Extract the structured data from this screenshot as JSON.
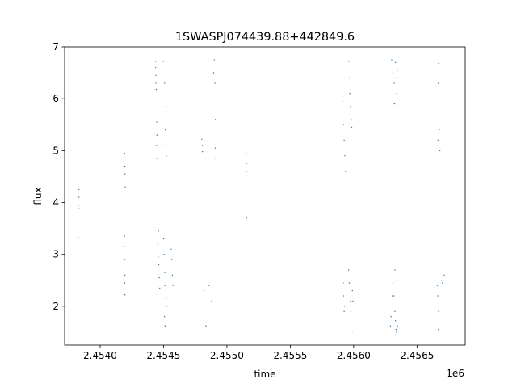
{
  "chart_data": {
    "type": "scatter",
    "title": "1SWASPJ074439.88+442849.6",
    "xlabel": "time",
    "ylabel": "flux",
    "x_offset_label": "1e6",
    "xlim": [
      2453720,
      2456880
    ],
    "ylim": [
      1.25,
      7.0
    ],
    "x_ticks": [
      2.454,
      2.4545,
      2.455,
      2.4555,
      2.456,
      2.4565
    ],
    "x_tick_labels": [
      "2.4540",
      "2.4545",
      "2.4550",
      "2.4555",
      "2.4560",
      "2.4565"
    ],
    "y_ticks": [
      2,
      3,
      4,
      5,
      6,
      7
    ],
    "y_tick_labels": [
      "2",
      "3",
      "4",
      "5",
      "6",
      "7"
    ],
    "grid": false,
    "marker_color": "#1f77b4",
    "series": [
      {
        "points": [
          [
            2453833,
            4.25
          ],
          [
            2453833,
            4.1
          ],
          [
            2453833,
            3.95
          ],
          [
            2453833,
            3.88
          ],
          [
            2453830,
            3.32
          ],
          [
            2454193,
            4.95
          ],
          [
            2454195,
            4.7
          ],
          [
            2454196,
            4.55
          ],
          [
            2454198,
            4.3
          ],
          [
            2454193,
            3.35
          ],
          [
            2454192,
            3.15
          ],
          [
            2454194,
            2.9
          ],
          [
            2454196,
            2.6
          ],
          [
            2454195,
            2.45
          ],
          [
            2454196,
            2.22
          ],
          [
            2454437,
            6.72
          ],
          [
            2454438,
            6.6
          ],
          [
            2454440,
            6.45
          ],
          [
            2454441,
            6.3
          ],
          [
            2454443,
            6.18
          ],
          [
            2454446,
            5.55
          ],
          [
            2454448,
            5.3
          ],
          [
            2454445,
            5.1
          ],
          [
            2454447,
            4.85
          ],
          [
            2454500,
            6.72
          ],
          [
            2454508,
            6.3
          ],
          [
            2454520,
            5.85
          ],
          [
            2454515,
            5.4
          ],
          [
            2454518,
            5.1
          ],
          [
            2454522,
            4.9
          ],
          [
            2454460,
            3.45
          ],
          [
            2454455,
            3.2
          ],
          [
            2454458,
            2.95
          ],
          [
            2454462,
            2.8
          ],
          [
            2454465,
            2.55
          ],
          [
            2454470,
            2.35
          ],
          [
            2454500,
            3.3
          ],
          [
            2454505,
            3.0
          ],
          [
            2454510,
            2.65
          ],
          [
            2454512,
            2.4
          ],
          [
            2454520,
            2.15
          ],
          [
            2454525,
            2.0
          ],
          [
            2454508,
            1.8
          ],
          [
            2454512,
            1.62
          ],
          [
            2454520,
            1.6
          ],
          [
            2454560,
            3.1
          ],
          [
            2454565,
            2.9
          ],
          [
            2454570,
            2.6
          ],
          [
            2454575,
            2.4
          ],
          [
            2454900,
            6.75
          ],
          [
            2454895,
            6.5
          ],
          [
            2454905,
            6.3
          ],
          [
            2454910,
            5.6
          ],
          [
            2454908,
            5.05
          ],
          [
            2454912,
            4.85
          ],
          [
            2454802,
            5.22
          ],
          [
            2454805,
            5.1
          ],
          [
            2454808,
            4.98
          ],
          [
            2454860,
            2.4
          ],
          [
            2454880,
            2.1
          ],
          [
            2454835,
            1.62
          ],
          [
            2454820,
            2.3
          ],
          [
            2455152,
            4.95
          ],
          [
            2455153,
            4.75
          ],
          [
            2455154,
            4.6
          ],
          [
            2455155,
            3.7
          ],
          [
            2455152,
            3.65
          ],
          [
            2455915,
            5.95
          ],
          [
            2455918,
            5.5
          ],
          [
            2455925,
            5.2
          ],
          [
            2455930,
            4.9
          ],
          [
            2455935,
            4.6
          ],
          [
            2455960,
            6.72
          ],
          [
            2455965,
            6.4
          ],
          [
            2455970,
            6.1
          ],
          [
            2455975,
            5.85
          ],
          [
            2455980,
            5.6
          ],
          [
            2455985,
            5.45
          ],
          [
            2455918,
            2.45
          ],
          [
            2455920,
            2.2
          ],
          [
            2455925,
            1.9
          ],
          [
            2455930,
            2.0
          ],
          [
            2455960,
            2.7
          ],
          [
            2455965,
            2.45
          ],
          [
            2455975,
            2.1
          ],
          [
            2455978,
            1.9
          ],
          [
            2455990,
            2.3
          ],
          [
            2455995,
            2.1
          ],
          [
            2455990,
            1.52
          ],
          [
            2456300,
            6.75
          ],
          [
            2456310,
            6.5
          ],
          [
            2456320,
            6.3
          ],
          [
            2456330,
            6.7
          ],
          [
            2456335,
            6.4
          ],
          [
            2456340,
            6.1
          ],
          [
            2456345,
            6.55
          ],
          [
            2456322,
            5.9
          ],
          [
            2456290,
            1.62
          ],
          [
            2456295,
            1.8
          ],
          [
            2456305,
            2.2
          ],
          [
            2456310,
            2.45
          ],
          [
            2456318,
            2.2
          ],
          [
            2456325,
            1.9
          ],
          [
            2456330,
            1.72
          ],
          [
            2456335,
            1.55
          ],
          [
            2456345,
            1.62
          ],
          [
            2456338,
            1.5
          ],
          [
            2456325,
            2.7
          ],
          [
            2456340,
            2.5
          ],
          [
            2456670,
            6.68
          ],
          [
            2456668,
            6.3
          ],
          [
            2456672,
            6.0
          ],
          [
            2456675,
            5.4
          ],
          [
            2456665,
            5.2
          ],
          [
            2456680,
            5.0
          ],
          [
            2456660,
            2.4
          ],
          [
            2456665,
            2.2
          ],
          [
            2456670,
            1.9
          ],
          [
            2456672,
            1.6
          ],
          [
            2456668,
            1.55
          ],
          [
            2456690,
            2.5
          ],
          [
            2456700,
            2.45
          ],
          [
            2456715,
            2.6
          ]
        ]
      }
    ]
  }
}
